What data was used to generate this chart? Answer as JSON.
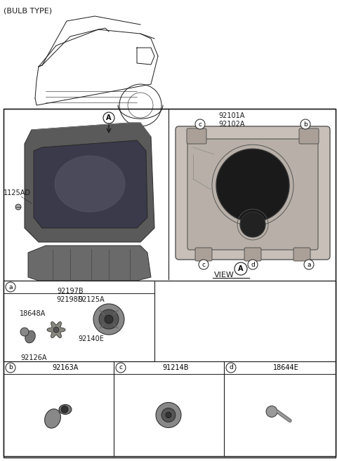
{
  "title": "(BULB TYPE)",
  "bg_color": "#ffffff",
  "line_color": "#1a1a1a",
  "part_labels": {
    "main1": "92101A\n92102A",
    "main2": "1125AD",
    "main3": "92197B\n92198D",
    "sub_a_parts": {
      "p1": "92125A",
      "p2": "18648A",
      "p3": "92126A",
      "p4": "92140E"
    },
    "sub_b_part": "92163A",
    "sub_c_part": "91214B",
    "sub_d_part": "18644E"
  },
  "layout": {
    "car_region": [
      0,
      0,
      240,
      160
    ],
    "headlamp_region": [
      10,
      165,
      230,
      390
    ],
    "view_region": [
      240,
      155,
      478,
      395
    ],
    "table_region": [
      5,
      398,
      478,
      650
    ]
  }
}
